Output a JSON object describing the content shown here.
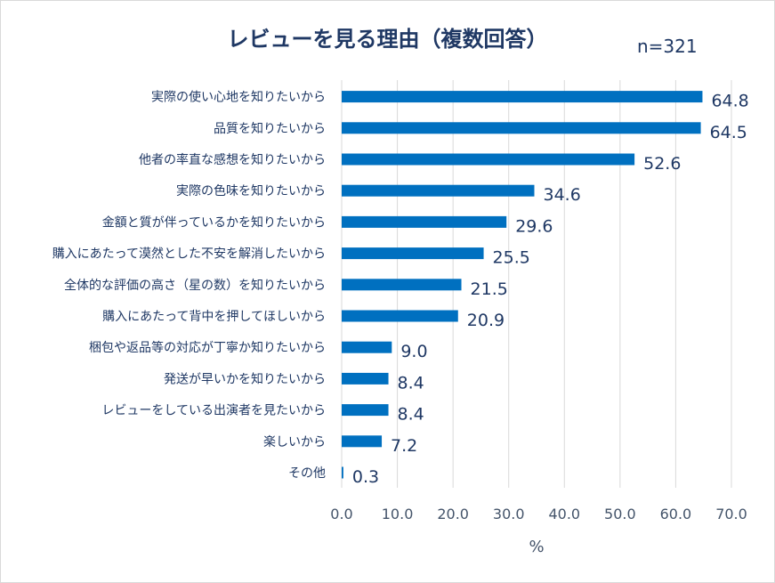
{
  "chart_data": {
    "type": "bar",
    "orientation": "horizontal",
    "title": "レビューを見る理由（複数回答）",
    "sample_size": "n=321",
    "xlabel": "%",
    "xlim": [
      0,
      70
    ],
    "xticks": [
      "0.0",
      "10.0",
      "20.0",
      "30.0",
      "40.0",
      "50.0",
      "60.0",
      "70.0"
    ],
    "grid": true,
    "bar_color": "#0070c0",
    "categories": [
      "実際の使い心地を知りたいから",
      "品質を知りたいから",
      "他者の率直な感想を知りたいから",
      "実際の色味を知りたいから",
      "金額と質が伴っているかを知りたいから",
      "購入にあたって漠然とした不安を解消したいから",
      "全体的な評価の高さ（星の数）を知りたいから",
      "購入にあたって背中を押してほしいから",
      "梱包や返品等の対応が丁寧か知りたいから",
      "発送が早いかを知りたいから",
      "レビューをしている出演者を見たいから",
      "楽しいから",
      "その他"
    ],
    "values": [
      64.8,
      64.5,
      52.6,
      34.6,
      29.6,
      25.5,
      21.5,
      20.9,
      9.0,
      8.4,
      8.4,
      7.2,
      0.3
    ],
    "value_labels": [
      "64.8",
      "64.5",
      "52.6",
      "34.6",
      "29.6",
      "25.5",
      "21.5",
      "20.9",
      "9.0",
      "8.4",
      "8.4",
      "7.2",
      "0.3"
    ]
  }
}
